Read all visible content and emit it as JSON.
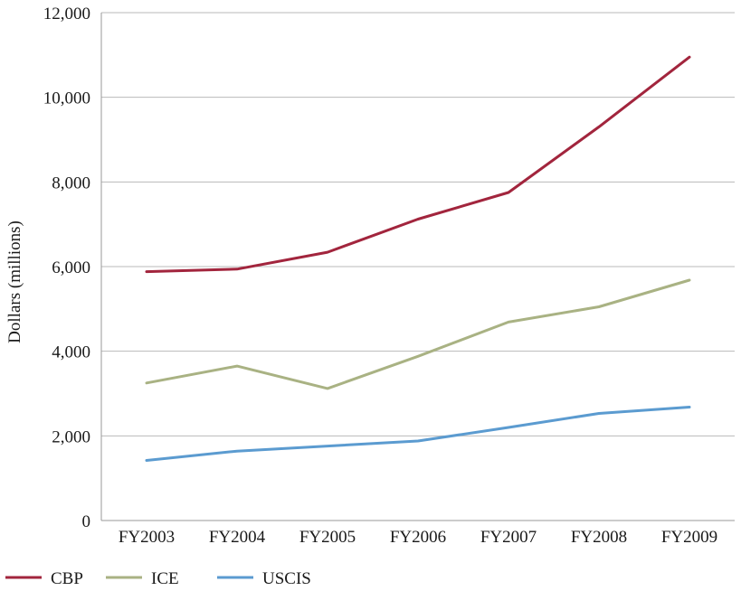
{
  "chart_data": {
    "type": "line",
    "title": "",
    "xlabel": "",
    "ylabel": "Dollars (millions)",
    "categories": [
      "FY2003",
      "FY2004",
      "FY2005",
      "FY2006",
      "FY2007",
      "FY2008",
      "FY2009"
    ],
    "ylim": [
      0,
      12000
    ],
    "yticks": [
      0,
      2000,
      4000,
      6000,
      8000,
      10000,
      12000
    ],
    "ytick_labels": [
      "0",
      "2,000",
      "4,000",
      "6,000",
      "8,000",
      "10,000",
      "12,000"
    ],
    "grid": true,
    "legend_position": "bottom-left",
    "series": [
      {
        "name": "CBP",
        "color": "#a2253d",
        "values": [
          5880,
          5940,
          6340,
          7120,
          7750,
          9300,
          10950
        ]
      },
      {
        "name": "ICE",
        "color": "#a9b283",
        "values": [
          3250,
          3650,
          3120,
          3880,
          4690,
          5050,
          5680
        ]
      },
      {
        "name": "USCIS",
        "color": "#5b9bd0",
        "values": [
          1420,
          1640,
          1760,
          1880,
          2200,
          2530,
          2680
        ]
      }
    ]
  }
}
